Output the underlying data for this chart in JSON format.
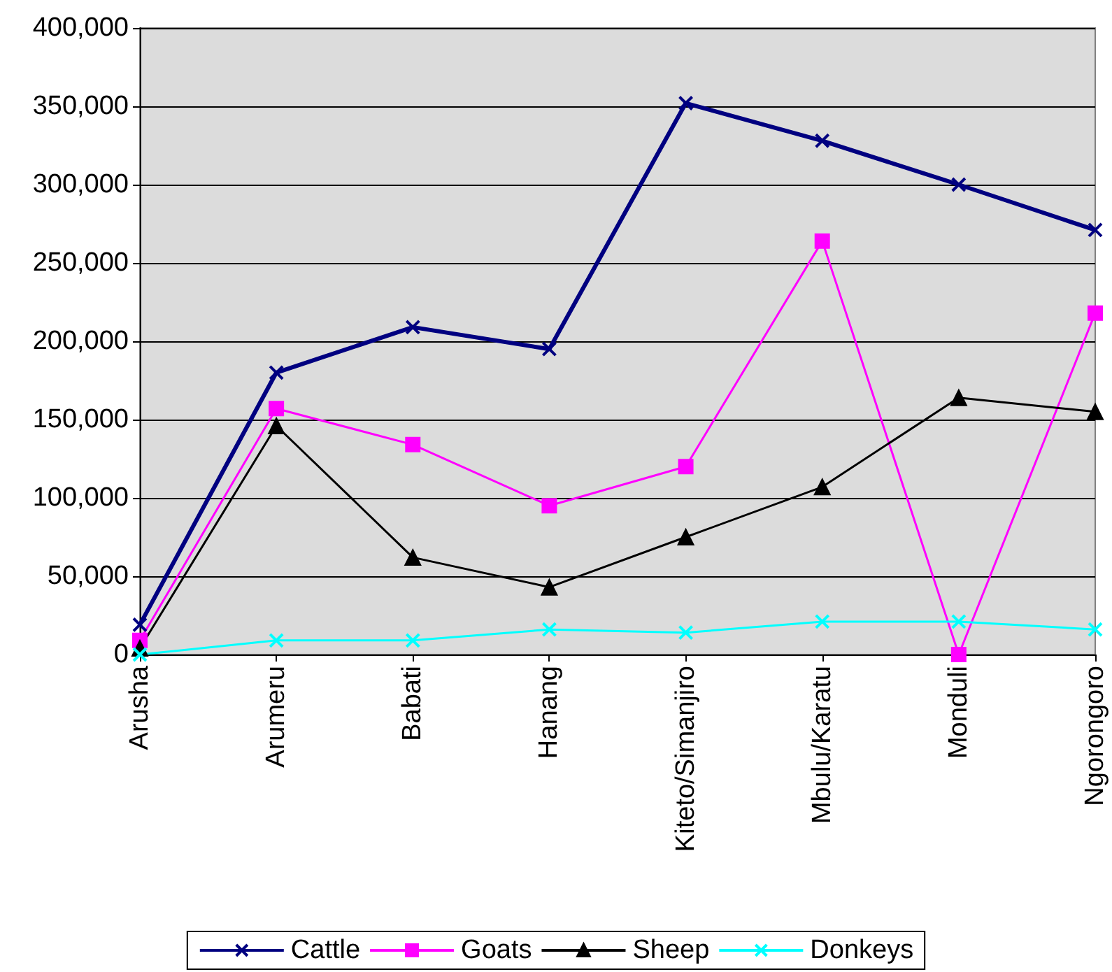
{
  "chart_data": {
    "type": "line",
    "categories": [
      "Arusha",
      "Arumeru",
      "Babati",
      "Hanang",
      "Kiteto/Simanjiro",
      "Mbulu/Karatu",
      "Monduli",
      "Ngorongoro"
    ],
    "series": [
      {
        "name": "Cattle",
        "color": "#000080",
        "marker": "cross",
        "values": [
          19000,
          180000,
          209000,
          195000,
          352000,
          328000,
          300000,
          271000
        ]
      },
      {
        "name": "Goats",
        "color": "#ff00ff",
        "marker": "square",
        "values": [
          9000,
          157000,
          134000,
          95000,
          120000,
          264000,
          0,
          218000
        ]
      },
      {
        "name": "Sheep",
        "color": "#000000",
        "marker": "triangle",
        "values": [
          4000,
          146000,
          62000,
          43000,
          75000,
          107000,
          164000,
          155000
        ]
      },
      {
        "name": "Donkeys",
        "color": "#00ffff",
        "marker": "cross",
        "values": [
          0,
          9000,
          9000,
          16000,
          14000,
          21000,
          21000,
          16000
        ]
      }
    ],
    "ylim": [
      0,
      400000
    ],
    "yticks": [
      0,
      {
        "value": 50000,
        "label": "50,000"
      },
      {
        "value": 100000,
        "label": "100,000"
      },
      {
        "value": 150000,
        "label": "150,000"
      },
      {
        "value": 200000,
        "label": "200,000"
      },
      {
        "value": 250000,
        "label": "250,000"
      },
      {
        "value": 300000,
        "label": "300,000"
      },
      {
        "value": 350000,
        "label": "350,000"
      },
      {
        "value": 400000,
        "label": "400,000"
      }
    ],
    "grid": "y",
    "legend": "bottom",
    "line_style": "solid"
  }
}
